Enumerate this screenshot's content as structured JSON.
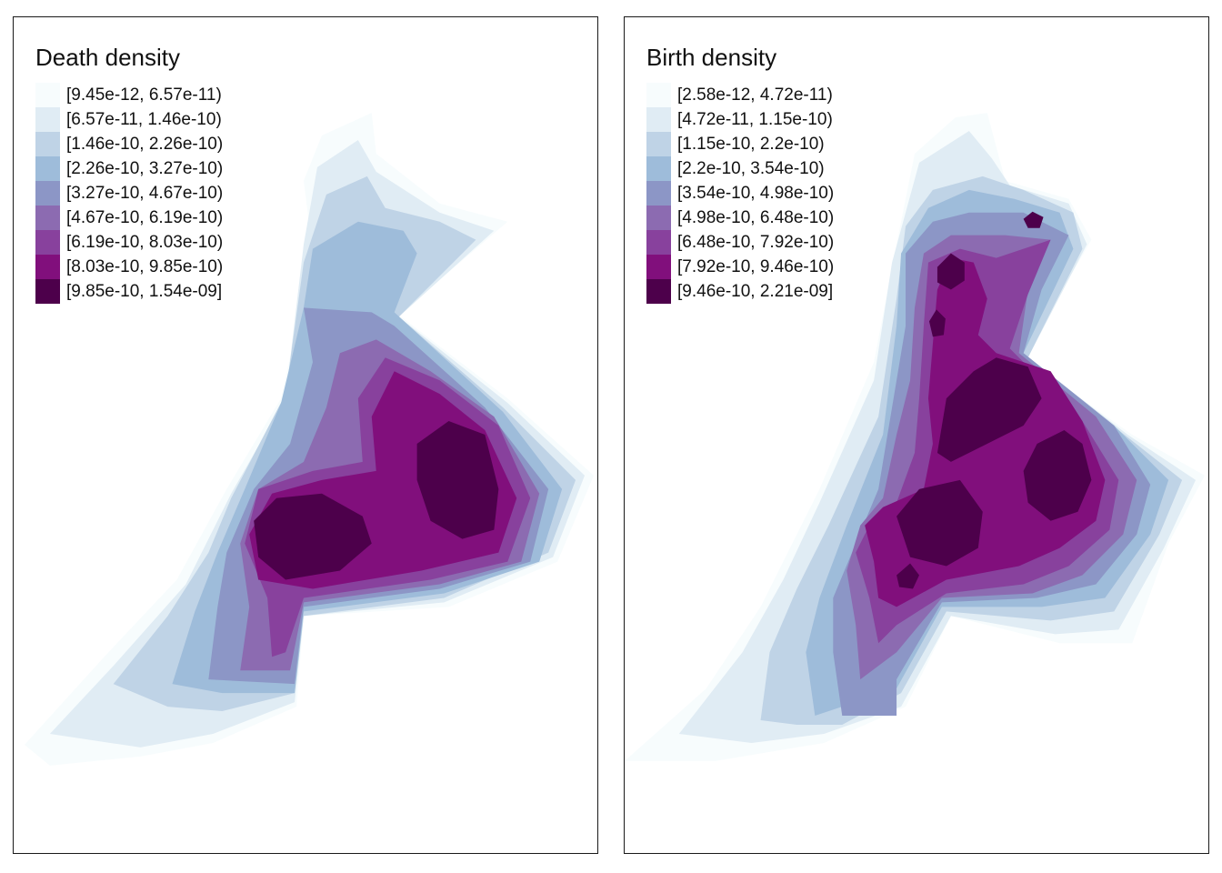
{
  "palette": [
    "#f7fcfd",
    "#e0ecf4",
    "#bfd3e6",
    "#9ebcda",
    "#8c96c6",
    "#8c6bb1",
    "#88419d",
    "#810f7c",
    "#4d004b"
  ],
  "maps": [
    {
      "id": "death",
      "legend_title": "Death density",
      "classes": [
        "[9.45e-12, 6.57e-11)",
        "[6.57e-11, 1.46e-10)",
        "[1.46e-10, 2.26e-10)",
        "[2.26e-10, 3.27e-10)",
        "[3.27e-10, 4.67e-10)",
        "[4.67e-10, 6.19e-10)",
        "[6.19e-10, 8.03e-10)",
        "[8.03e-10, 9.85e-10)",
        "[9.85e-10, 1.54e-09]"
      ]
    },
    {
      "id": "birth",
      "legend_title": "Birth density",
      "classes": [
        "[2.58e-12, 4.72e-11)",
        "[4.72e-11, 1.15e-10)",
        "[1.15e-10, 2.2e-10)",
        "[2.2e-10, 3.54e-10)",
        "[3.54e-10, 4.98e-10)",
        "[4.98e-10, 6.48e-10)",
        "[6.48e-10, 7.92e-10)",
        "[7.92e-10, 9.46e-10)",
        "[9.46e-10, 2.21e-09]"
      ]
    }
  ]
}
